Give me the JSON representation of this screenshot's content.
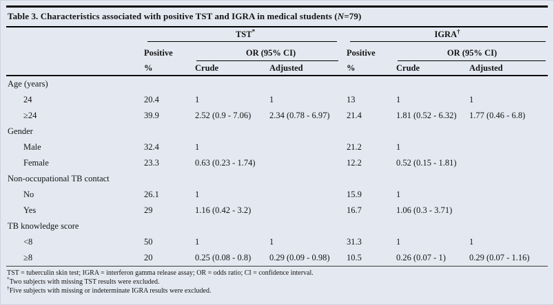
{
  "title": {
    "prefix": "Table 3. Characteristics associated with positive TST and IGRA in medical students (",
    "n_italic": "N",
    "suffix": "=79)"
  },
  "header": {
    "tst": {
      "label": "TST",
      "sup": "*"
    },
    "igra": {
      "label": "IGRA",
      "sup": "†"
    },
    "positive_line1": "Positive",
    "positive_line2": "%",
    "or_ci": "OR (95% CI)",
    "crude": "Crude",
    "adjusted": "Adjusted"
  },
  "rows": [
    {
      "type": "group",
      "label": "Age (years)"
    },
    {
      "type": "data",
      "label": "24",
      "tst_pos": "20.4",
      "tst_crude": "1",
      "tst_adj": "1",
      "igra_pos": "13",
      "igra_crude": "1",
      "igra_adj": "1"
    },
    {
      "type": "data",
      "label": "≥24",
      "tst_pos": "39.9",
      "tst_crude": "2.52 (0.9 - 7.06)",
      "tst_adj": "2.34 (0.78 - 6.97)",
      "igra_pos": "21.4",
      "igra_crude": "1.81 (0.52 - 6.32)",
      "igra_adj": "1.77 (0.46 - 6.8)"
    },
    {
      "type": "group",
      "label": "Gender"
    },
    {
      "type": "data",
      "label": "Male",
      "tst_pos": "32.4",
      "tst_crude": "1",
      "tst_adj": "",
      "igra_pos": "21.2",
      "igra_crude": "1",
      "igra_adj": ""
    },
    {
      "type": "data",
      "label": "Female",
      "tst_pos": "23.3",
      "tst_crude": "0.63 (0.23 - 1.74)",
      "tst_adj": "",
      "igra_pos": "12.2",
      "igra_crude": "0.52 (0.15 - 1.81)",
      "igra_adj": ""
    },
    {
      "type": "group",
      "label": "Non-occupational TB contact"
    },
    {
      "type": "data",
      "label": "No",
      "tst_pos": "26.1",
      "tst_crude": "1",
      "tst_adj": "",
      "igra_pos": "15.9",
      "igra_crude": "1",
      "igra_adj": ""
    },
    {
      "type": "data",
      "label": "Yes",
      "tst_pos": "29",
      "tst_crude": "1.16 (0.42 - 3.2)",
      "tst_adj": "",
      "igra_pos": "16.7",
      "igra_crude": "1.06 (0.3 - 3.71)",
      "igra_adj": ""
    },
    {
      "type": "group",
      "label": "TB knowledge score"
    },
    {
      "type": "data",
      "label": "<8",
      "tst_pos": "50",
      "tst_crude": "1",
      "tst_adj": "1",
      "igra_pos": "31.3",
      "igra_crude": "1",
      "igra_adj": "1"
    },
    {
      "type": "data",
      "label": "≥8",
      "tst_pos": "20",
      "tst_crude": "0.25 (0.08 - 0.8)",
      "tst_adj": "0.29 (0.09 - 0.98)",
      "igra_pos": "10.5",
      "igra_crude": "0.26 (0.07 - 1)",
      "igra_adj": "0.29 (0.07 - 1.16)"
    }
  ],
  "footnotes": [
    {
      "marker": "",
      "text": "TST = tuberculin skin test; IGRA = interferon gamma release assay; OR = odds ratio; CI = confidence interval."
    },
    {
      "marker": "*",
      "text": "Two subjects with missing TST results were excluded."
    },
    {
      "marker": "†",
      "text": "Five subjects with missing or indeterminate IGRA results were excluded."
    }
  ],
  "colors": {
    "panel_bg": "#e4e8f1",
    "rule": "#000000",
    "text": "#141414"
  }
}
